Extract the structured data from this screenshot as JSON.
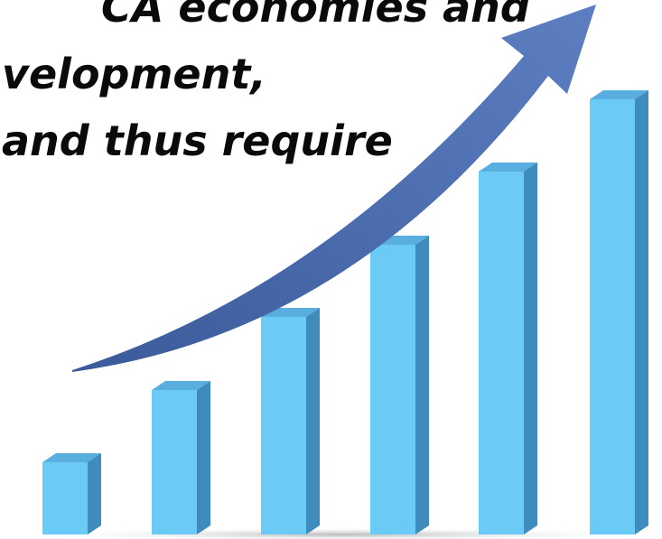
{
  "text_lines": [
    "CA economies and",
    "velopment,",
    "and thus require"
  ]
}
